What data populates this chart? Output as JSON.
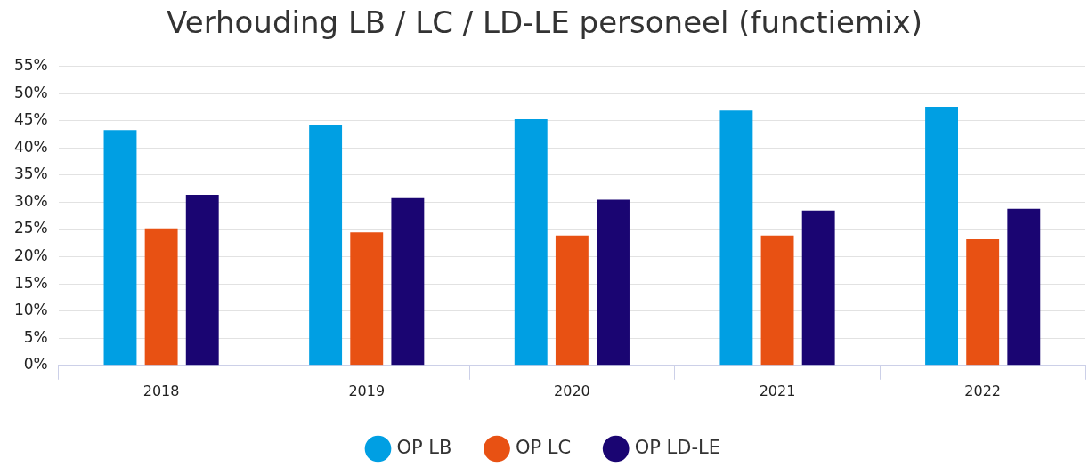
{
  "chart_data": {
    "type": "bar",
    "title": "Verhouding LB / LC / LD-LE personeel (functiemix)",
    "categories": [
      "2018",
      "2019",
      "2020",
      "2021",
      "2022"
    ],
    "series": [
      {
        "name": "OP LB",
        "color": "#009fe3",
        "values": [
          43.3,
          44.3,
          45.3,
          46.9,
          47.6
        ]
      },
      {
        "name": "OP LC",
        "color": "#e85113",
        "values": [
          25.2,
          24.5,
          23.9,
          23.9,
          23.2
        ]
      },
      {
        "name": "OP LD-LE",
        "color": "#1a0572",
        "values": [
          31.4,
          30.8,
          30.5,
          28.5,
          28.8
        ]
      }
    ],
    "ylim": [
      0,
      55
    ],
    "yticks": [
      {
        "value": 0,
        "label": "0%"
      },
      {
        "value": 5,
        "label": "5%"
      },
      {
        "value": 10,
        "label": "10%"
      },
      {
        "value": 15,
        "label": "15%"
      },
      {
        "value": 20,
        "label": "20%"
      },
      {
        "value": 25,
        "label": "25%"
      },
      {
        "value": 30,
        "label": "30%"
      },
      {
        "value": 35,
        "label": "35%"
      },
      {
        "value": 40,
        "label": "40%"
      },
      {
        "value": 45,
        "label": "45%"
      },
      {
        "value": 50,
        "label": "50%"
      },
      {
        "value": 55,
        "label": "55%"
      }
    ],
    "grid": "y",
    "legend": "bottom"
  }
}
